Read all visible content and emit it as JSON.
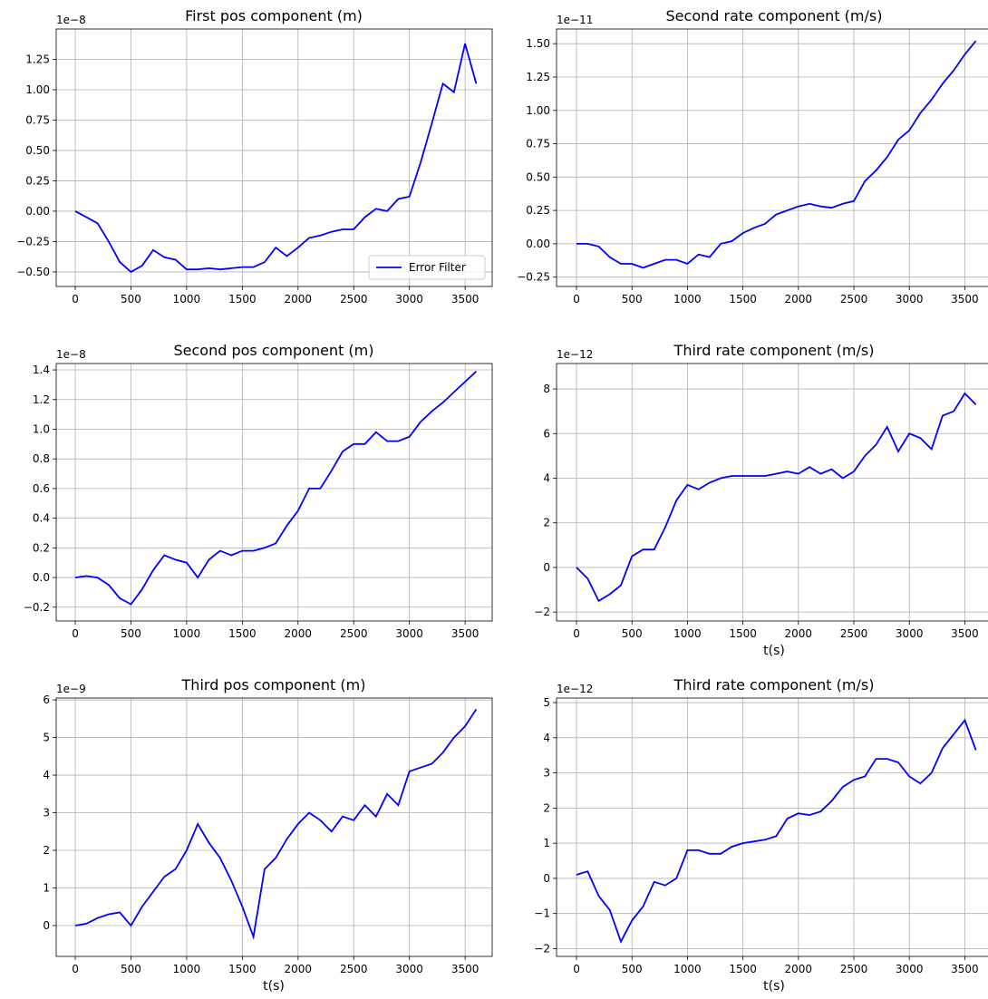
{
  "chart_data": [
    {
      "type": "line",
      "title": "First pos component (m)",
      "offset_label": "1e−8",
      "color": "#0000ff",
      "grid": true,
      "legend_label": "Error Filter",
      "legend": "lower right",
      "x": [
        0,
        100,
        200,
        300,
        400,
        500,
        600,
        700,
        800,
        900,
        1000,
        1100,
        1200,
        1300,
        1400,
        1500,
        1600,
        1700,
        1800,
        1900,
        2000,
        2100,
        2200,
        2300,
        2400,
        2500,
        2600,
        2700,
        2800,
        2900,
        3000,
        3100,
        3200,
        3300,
        3400,
        3500,
        3600
      ],
      "values": [
        0,
        -0.05,
        -0.1,
        -0.25,
        -0.42,
        -0.5,
        -0.45,
        -0.32,
        -0.38,
        -0.4,
        -0.48,
        -0.48,
        -0.47,
        -0.48,
        -0.47,
        -0.46,
        -0.46,
        -0.42,
        -0.3,
        -0.37,
        -0.3,
        -0.22,
        -0.2,
        -0.17,
        -0.15,
        -0.15,
        -0.05,
        0.02,
        0.0,
        0.1,
        0.12,
        0.4,
        0.72,
        1.05,
        0.98,
        1.38,
        1.05
      ],
      "xlim": [
        -171,
        3743
      ],
      "ylim": [
        -0.62,
        1.5
      ],
      "xticks": [
        0,
        500,
        1000,
        1500,
        2000,
        2500,
        3000,
        3500
      ],
      "yticks": [
        {
          "value": -0.5,
          "label": "−0.50"
        },
        {
          "value": -0.25,
          "label": "−0.25"
        },
        {
          "value": 0,
          "label": "0.00"
        },
        0.25,
        {
          "value": 0.5,
          "label": "0.50"
        },
        0.75,
        {
          "value": 1,
          "label": "1.00"
        },
        1.25
      ]
    },
    {
      "type": "line",
      "title": "Second rate component (m/s)",
      "offset_label": "1e−11",
      "color": "#0000ff",
      "grid": true,
      "x": [
        0,
        100,
        200,
        300,
        400,
        500,
        600,
        700,
        800,
        900,
        1000,
        1100,
        1200,
        1300,
        1400,
        1500,
        1600,
        1700,
        1800,
        1900,
        2000,
        2100,
        2200,
        2300,
        2400,
        2500,
        2600,
        2700,
        2800,
        2900,
        3000,
        3100,
        3200,
        3300,
        3400,
        3500,
        3600
      ],
      "values": [
        0,
        0,
        -0.02,
        -0.1,
        -0.15,
        -0.15,
        -0.18,
        -0.15,
        -0.12,
        -0.12,
        -0.15,
        -0.08,
        -0.1,
        0,
        0.02,
        0.08,
        0.12,
        0.15,
        0.22,
        0.25,
        0.28,
        0.3,
        0.28,
        0.27,
        0.3,
        0.32,
        0.47,
        0.55,
        0.65,
        0.78,
        0.85,
        0.98,
        1.08,
        1.2,
        1.3,
        1.42,
        1.52
      ],
      "xlim": [
        -180,
        3750
      ],
      "ylim": [
        -0.32,
        1.61
      ],
      "xticks": [
        0,
        500,
        1000,
        1500,
        2000,
        2500,
        3000,
        3500
      ],
      "yticks": [
        {
          "value": -0.25,
          "label": "−0.25"
        },
        {
          "value": 0,
          "label": "0.00"
        },
        0.25,
        {
          "value": 0.5,
          "label": "0.50"
        },
        0.75,
        {
          "value": 1,
          "label": "1.00"
        },
        1.25,
        {
          "value": 1.5,
          "label": "1.50"
        }
      ]
    },
    {
      "type": "line",
      "title": "Second pos component (m)",
      "offset_label": "1e−8",
      "color": "#0000ff",
      "grid": true,
      "x": [
        0,
        100,
        200,
        300,
        400,
        500,
        600,
        700,
        800,
        900,
        1000,
        1100,
        1200,
        1300,
        1400,
        1500,
        1600,
        1700,
        1800,
        1900,
        2000,
        2100,
        2200,
        2300,
        2400,
        2500,
        2600,
        2700,
        2800,
        2900,
        3000,
        3100,
        3200,
        3300,
        3400,
        3500,
        3600
      ],
      "values": [
        0,
        0.01,
        0,
        -0.05,
        -0.14,
        -0.18,
        -0.08,
        0.05,
        0.15,
        0.12,
        0.1,
        0,
        0.12,
        0.18,
        0.15,
        0.18,
        0.18,
        0.2,
        0.23,
        0.35,
        0.45,
        0.6,
        0.6,
        0.72,
        0.85,
        0.9,
        0.9,
        0.98,
        0.92,
        0.92,
        0.95,
        1.05,
        1.12,
        1.18,
        1.25,
        1.32,
        1.39
      ],
      "xlim": [
        -171,
        3743
      ],
      "ylim": [
        -0.293,
        1.443
      ],
      "xticks": [
        0,
        500,
        1000,
        1500,
        2000,
        2500,
        3000,
        3500
      ],
      "yticks": [
        {
          "value": -0.2,
          "label": "−0.2"
        },
        {
          "value": 0,
          "label": "0.0"
        },
        0.2,
        0.4,
        0.6,
        0.8,
        {
          "value": 1,
          "label": "1.0"
        },
        1.2,
        1.4
      ]
    },
    {
      "type": "line",
      "title": "Third rate component (m/s)",
      "offset_label": "1e−12",
      "color": "#0000ff",
      "grid": true,
      "xlabel": "t(s)",
      "x": [
        0,
        100,
        200,
        300,
        400,
        500,
        600,
        700,
        800,
        900,
        1000,
        1100,
        1200,
        1300,
        1400,
        1500,
        1600,
        1700,
        1800,
        1900,
        2000,
        2100,
        2200,
        2300,
        2400,
        2500,
        2600,
        2700,
        2800,
        2900,
        3000,
        3100,
        3200,
        3300,
        3400,
        3500,
        3600
      ],
      "values": [
        0,
        -0.5,
        -1.5,
        -1.2,
        -0.8,
        0.5,
        0.8,
        0.8,
        1.8,
        3,
        3.7,
        3.5,
        3.8,
        4,
        4.1,
        4.1,
        4.1,
        4.1,
        4.2,
        4.3,
        4.2,
        4.5,
        4.2,
        4.4,
        4,
        4.3,
        5,
        5.5,
        6.3,
        5.2,
        6,
        5.8,
        5.3,
        6.8,
        7,
        7.8,
        7.3
      ],
      "xlim": [
        -180,
        3750
      ],
      "ylim": [
        -2.4,
        9.14
      ],
      "xticks": [
        0,
        500,
        1000,
        1500,
        2000,
        2500,
        3000,
        3500
      ],
      "yticks": [
        {
          "value": -2,
          "label": "−2"
        },
        0,
        2,
        4,
        6,
        8
      ]
    },
    {
      "type": "line",
      "title": "Third pos component (m)",
      "offset_label": "1e−9",
      "color": "#0000ff",
      "grid": true,
      "xlabel": "t(s)",
      "x": [
        0,
        100,
        200,
        300,
        400,
        500,
        600,
        700,
        800,
        900,
        1000,
        1100,
        1200,
        1300,
        1400,
        1500,
        1600,
        1700,
        1800,
        1900,
        2000,
        2100,
        2200,
        2300,
        2400,
        2500,
        2600,
        2700,
        2800,
        2900,
        3000,
        3100,
        3200,
        3300,
        3400,
        3500,
        3600
      ],
      "values": [
        0,
        0.05,
        0.2,
        0.3,
        0.35,
        0,
        0.5,
        0.9,
        1.3,
        1.5,
        2,
        2.7,
        2.2,
        1.8,
        1.2,
        0.5,
        -0.3,
        1.5,
        1.8,
        2.3,
        2.7,
        3,
        2.8,
        2.5,
        2.9,
        2.8,
        3.2,
        2.9,
        3.5,
        3.2,
        4.1,
        4.2,
        4.3,
        4.6,
        5,
        5.3,
        5.75
      ],
      "xlim": [
        -171,
        3743
      ],
      "ylim": [
        -0.82,
        6.05
      ],
      "xticks": [
        0,
        500,
        1000,
        1500,
        2000,
        2500,
        3000,
        3500
      ],
      "yticks": [
        0,
        1,
        2,
        3,
        4,
        5,
        6
      ]
    },
    {
      "type": "line",
      "title": "Third rate component (m/s)",
      "offset_label": "1e−12",
      "color": "#0000ff",
      "grid": true,
      "xlabel": "t(s)",
      "x": [
        0,
        100,
        200,
        300,
        400,
        500,
        600,
        700,
        800,
        900,
        1000,
        1100,
        1200,
        1300,
        1400,
        1500,
        1600,
        1700,
        1800,
        1900,
        2000,
        2100,
        2200,
        2300,
        2400,
        2500,
        2600,
        2700,
        2800,
        2900,
        3000,
        3100,
        3200,
        3300,
        3400,
        3500,
        3600
      ],
      "values": [
        0.1,
        0.2,
        -0.5,
        -0.9,
        -1.8,
        -1.2,
        -0.8,
        -0.1,
        -0.2,
        0,
        0.8,
        0.8,
        0.7,
        0.7,
        0.9,
        1,
        1.05,
        1.1,
        1.2,
        1.7,
        1.85,
        1.8,
        1.9,
        2.2,
        2.6,
        2.8,
        2.9,
        3.4,
        3.4,
        3.3,
        2.9,
        2.7,
        3,
        3.7,
        4.1,
        4.5,
        3.65
      ],
      "xlim": [
        -180,
        3750
      ],
      "ylim": [
        -2.22,
        5.13
      ],
      "xticks": [
        0,
        500,
        1000,
        1500,
        2000,
        2500,
        3000,
        3500
      ],
      "yticks": [
        {
          "value": -2,
          "label": "−2"
        },
        {
          "value": -1,
          "label": "−1"
        },
        0,
        1,
        2,
        3,
        4,
        5
      ]
    }
  ]
}
